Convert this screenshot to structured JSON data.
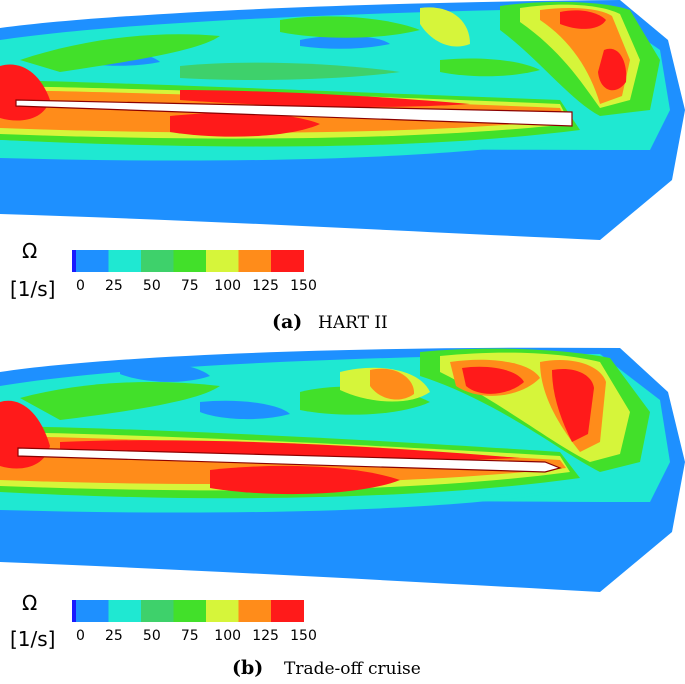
{
  "colors": {
    "dark_blue": "#1a1aff",
    "blue": "#1e90ff",
    "cyan": "#1fe8d2",
    "green_light": "#3ed16b",
    "green": "#42e02a",
    "yellow": "#d6f53a",
    "orange": "#ff8c1a",
    "red": "#ff1a1a",
    "blade": "#ffffff"
  },
  "legend": {
    "symbol": "Ω",
    "unit": "[1/s]",
    "ticks": [
      "0",
      "25",
      "50",
      "75",
      "100",
      "125",
      "150"
    ]
  },
  "panels": [
    {
      "label": "(a)",
      "caption": "HART II"
    },
    {
      "label": "(b)",
      "caption": "Trade-off cruise"
    }
  ]
}
